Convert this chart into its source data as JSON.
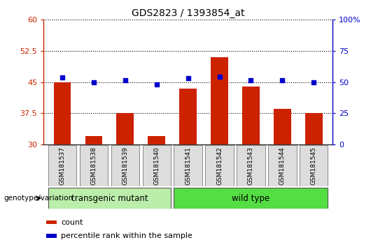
{
  "title": "GDS2823 / 1393854_at",
  "samples": [
    "GSM181537",
    "GSM181538",
    "GSM181539",
    "GSM181540",
    "GSM181541",
    "GSM181542",
    "GSM181543",
    "GSM181544",
    "GSM181545"
  ],
  "red_values": [
    45.0,
    32.0,
    37.5,
    32.0,
    43.5,
    51.0,
    44.0,
    38.5,
    37.5
  ],
  "blue_values": [
    46.2,
    45.0,
    45.5,
    44.5,
    46.0,
    46.3,
    45.5,
    45.5,
    45.0
  ],
  "ylim_left": [
    30,
    60
  ],
  "ylim_right": [
    0,
    100
  ],
  "yticks_left": [
    30,
    37.5,
    45,
    52.5,
    60
  ],
  "yticks_right": [
    0,
    25,
    50,
    75,
    100
  ],
  "ytick_labels_left": [
    "30",
    "37.5",
    "45",
    "52.5",
    "60"
  ],
  "ytick_labels_right": [
    "0",
    "25",
    "50",
    "75",
    "100%"
  ],
  "bar_color": "#cc2200",
  "marker_color": "#0000cc",
  "group1_label": "transgenic mutant",
  "group2_label": "wild type",
  "group1_color": "#bbeeaa",
  "group2_color": "#55dd44",
  "group1_indices": [
    0,
    1,
    2,
    3
  ],
  "group2_indices": [
    4,
    5,
    6,
    7,
    8
  ],
  "genotype_label": "genotype/variation",
  "legend_count": "count",
  "legend_percentile": "percentile rank within the sample",
  "dotted_line_color": "#000000",
  "bar_width": 0.55,
  "baseline": 30,
  "fig_width": 5.4,
  "fig_height": 3.54,
  "dpi": 100
}
